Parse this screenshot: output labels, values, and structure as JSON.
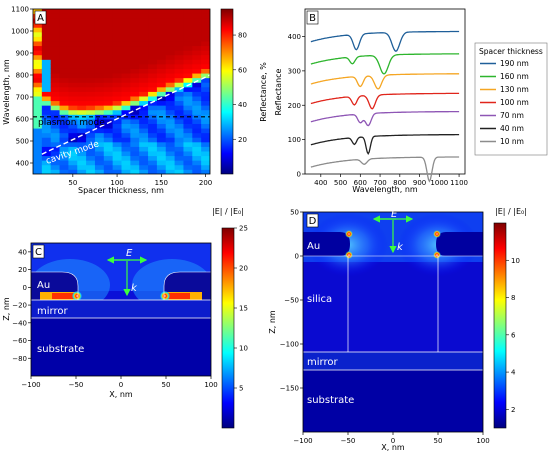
{
  "chart_data": [
    {
      "panel": "A",
      "type": "heatmap",
      "xlabel": "Spacer thickness, nm",
      "ylabel": "Wavelength, nm",
      "xlim": [
        5,
        205
      ],
      "ylim": [
        350,
        1100
      ],
      "xticks": [
        50,
        100,
        150,
        200
      ],
      "yticks": [
        400,
        500,
        600,
        700,
        800,
        900,
        1000,
        1100
      ],
      "colorbar": {
        "label": "Reflectance, %",
        "range": [
          0,
          95
        ],
        "ticks": [
          20,
          40,
          60,
          80
        ]
      },
      "annotations": [
        "plasmon mode",
        "cavity mode"
      ],
      "plasmon_line_y": 610,
      "cavity_line": {
        "x": [
          15,
          205
        ],
        "y": [
          440,
          800
        ]
      },
      "ridge": {
        "x": [
          10,
          20,
          30,
          40,
          50,
          60,
          70,
          80,
          90,
          100,
          110,
          120,
          130,
          140,
          150,
          160,
          170,
          180,
          190,
          200
        ],
        "y": [
          700,
          690,
          665,
          648,
          640,
          638,
          640,
          644,
          650,
          660,
          672,
          686,
          700,
          716,
          732,
          748,
          764,
          780,
          795,
          810
        ]
      }
    },
    {
      "panel": "B",
      "type": "line",
      "xlabel": "Wavelength, nm",
      "ylabel": "Reflectance",
      "xlim": [
        320,
        1130
      ],
      "ylim": [
        0,
        480
      ],
      "xticks": [
        400,
        500,
        600,
        700,
        800,
        900,
        1000,
        1100
      ],
      "yticks": [
        0,
        100,
        200,
        300,
        400
      ],
      "legend_title": "Spacer thickness",
      "series": [
        {
          "name": "190 nm",
          "color": "#1f5f99",
          "offset": 385,
          "dips": [
            [
              580,
              45,
              22
            ],
            [
              780,
              55,
              28
            ]
          ]
        },
        {
          "name": "160 nm",
          "color": "#2db52d",
          "offset": 320,
          "dips": [
            [
              560,
              20,
              18
            ],
            [
              720,
              55,
              30
            ]
          ]
        },
        {
          "name": "130 nm",
          "color": "#f5a623",
          "offset": 262,
          "dips": [
            [
              600,
              30,
              20
            ],
            [
              690,
              40,
              25
            ]
          ]
        },
        {
          "name": "100 nm",
          "color": "#e0251b",
          "offset": 205,
          "dips": [
            [
              570,
              25,
              18
            ],
            [
              660,
              40,
              22
            ]
          ]
        },
        {
          "name": "70 nm",
          "color": "#8e56b5",
          "offset": 152,
          "dips": [
            [
              600,
              25,
              18
            ],
            [
              640,
              35,
              20
            ]
          ]
        },
        {
          "name": "40 nm",
          "color": "#222222",
          "offset": 85,
          "dips": [
            [
              570,
              20,
              15
            ],
            [
              640,
              50,
              15
            ]
          ]
        },
        {
          "name": "10 nm",
          "color": "#8c8c8c",
          "offset": 20,
          "dips": [
            [
              620,
              15,
              20
            ],
            [
              950,
              70,
              18
            ]
          ]
        }
      ]
    },
    {
      "panel": "C",
      "type": "heatmap",
      "xlabel": "X, nm",
      "ylabel": "Z, nm",
      "xlim": [
        -100,
        100
      ],
      "ylim": [
        -100,
        50
      ],
      "xticks": [
        -100,
        -50,
        0,
        50,
        100
      ],
      "yticks": [
        -80,
        -60,
        -40,
        -20,
        0,
        20,
        40
      ],
      "colorbar": {
        "label": "|E| / |E₀|",
        "range": [
          0,
          25
        ],
        "ticks": [
          5,
          10,
          15,
          20,
          25
        ]
      },
      "labels": {
        "au": "Au",
        "mirror": "mirror",
        "substrate": "substrate",
        "e": "E",
        "k": "k"
      }
    },
    {
      "panel": "D",
      "type": "heatmap",
      "xlabel": "X, nm",
      "ylabel": "Z, nm",
      "xlim": [
        -100,
        100
      ],
      "ylim": [
        -200,
        50
      ],
      "xticks": [
        -100,
        -50,
        0,
        50,
        100
      ],
      "yticks": [
        -150,
        -100,
        -50,
        0,
        50
      ],
      "colorbar": {
        "label": "|E| / |E₀|",
        "range": [
          1,
          12
        ],
        "ticks": [
          2,
          4,
          6,
          8,
          10
        ]
      },
      "labels": {
        "au": "Au",
        "silica": "silica",
        "mirror": "mirror",
        "substrate": "substrate",
        "e": "E",
        "k": "k"
      }
    }
  ]
}
